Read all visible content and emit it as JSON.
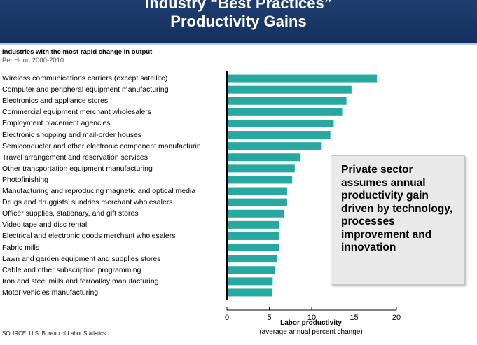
{
  "header": {
    "title_line1": "Industry “Best Practices”",
    "title_line2": "Productivity Gains",
    "bg_color": "#1a3768"
  },
  "callout": {
    "text": "Private sector assumes annual productivity gain driven by technology, processes improvement and innovation"
  },
  "footer": {
    "source": "SOURCE: U.S. Bureau of Labor Statistics"
  },
  "chart_data": {
    "type": "bar",
    "orientation": "horizontal",
    "title": "Industries with the most rapid change in output",
    "subtitle": "Per Hour, 2000-2010",
    "xlabel": "Labor productivity",
    "xlabel_sub": "(average annual percent change)",
    "xlim": [
      0,
      20
    ],
    "xticks": [
      0,
      5,
      10,
      15,
      20
    ],
    "bar_color": "#27a9a1",
    "grid": false,
    "categories": [
      "Wireless communications carriers (except satellite)",
      "Computer and peripheral equipment manufacturing",
      "Electronics and appliance stores",
      "Commercial equipment merchant wholesalers",
      "Employment placement agencies",
      "Electronic shopping and mail-order houses",
      "Semiconductor and other electronic component manufacturin",
      "Travel arrangement and reservation services",
      "Other transportation equipment manufacturing",
      "Photofinishing",
      "Manufacturing and reproducing magnetic and optical media",
      "Drugs and druggists’ sundries merchant wholesalers",
      "Officer supplies, stationary, and gift stores",
      "Video tape and disc rental",
      "Electrical and electronic goods merchant wholesalers",
      "Fabric mills",
      "Lawn and garden equipment and supplies stores",
      "Cable and other subscription programming",
      "Iron and steel mills and ferroalloy manufacturing",
      "Motor vehicles manufacturing"
    ],
    "values": [
      17.7,
      14.7,
      14.1,
      13.6,
      12.6,
      12.2,
      11.1,
      8.6,
      8.0,
      7.7,
      7.1,
      7.1,
      6.7,
      6.2,
      6.2,
      6.2,
      5.9,
      5.7,
      5.4,
      5.3
    ]
  }
}
